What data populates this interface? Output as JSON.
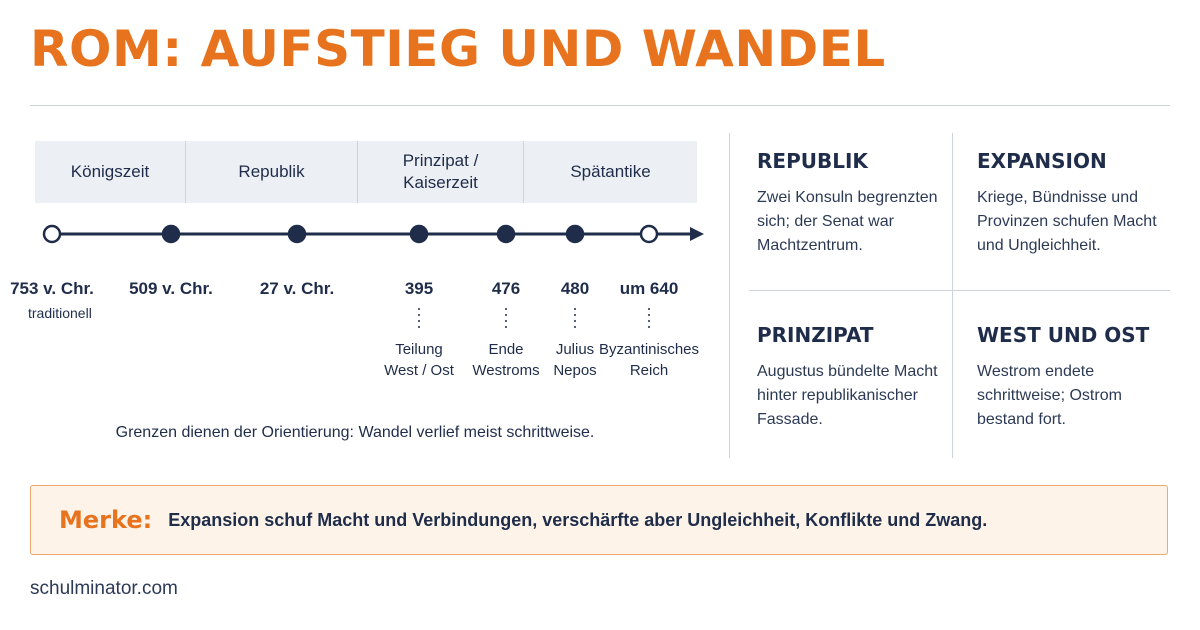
{
  "title": "ROM: AUFSTIEG UND WANDEL",
  "periods": [
    {
      "label": "Königszeit"
    },
    {
      "label": "Republik"
    },
    {
      "label": "Prinzipat / Kaiserzeit"
    },
    {
      "label": "Spätantike"
    }
  ],
  "timeline": {
    "events": [
      {
        "year": "753 v. Chr.",
        "sub": "traditionell",
        "note": "",
        "marker": "open"
      },
      {
        "year": "509 v. Chr.",
        "sub": "",
        "note": "",
        "marker": "filled"
      },
      {
        "year": "27 v. Chr.",
        "sub": "",
        "note": "",
        "marker": "filled"
      },
      {
        "year": "395",
        "sub": "",
        "note": "Teilung West / Ost",
        "marker": "filled"
      },
      {
        "year": "476",
        "sub": "",
        "note": "Ende Westroms",
        "marker": "filled"
      },
      {
        "year": "480",
        "sub": "",
        "note": "Julius Nepos",
        "marker": "filled"
      },
      {
        "year": "um 640",
        "sub": "",
        "note": "Byzantinisches Reich",
        "marker": "open"
      }
    ],
    "caption": "Grenzen dienen der Orientierung: Wandel verlief meist schrittweise."
  },
  "cards": [
    {
      "heading": "REPUBLIK",
      "text": "Zwei Konsuln begrenzten sich; der Senat war Machtzentrum."
    },
    {
      "heading": "EXPANSION",
      "text": "Kriege, Bündnisse und Provinzen schufen Macht und Ungleichheit."
    },
    {
      "heading": "PRINZIPAT",
      "text": "Augustus bündelte Macht hinter republikanischer Fassade."
    },
    {
      "heading": "WEST UND OST",
      "text": "Westrom endete schrittweise; Ostrom bestand fort."
    }
  ],
  "merke": {
    "label": "Merke:",
    "text": "Expansion schuf Macht und Verbindungen, verschärfte aber Ungleichheit, Konflikte und Zwang."
  },
  "footer": "schulminator.com",
  "colors": {
    "accent": "#e8731e",
    "navy": "#1f2d4a",
    "band": "#eceff3",
    "merke_bg": "#fdf3e8"
  }
}
